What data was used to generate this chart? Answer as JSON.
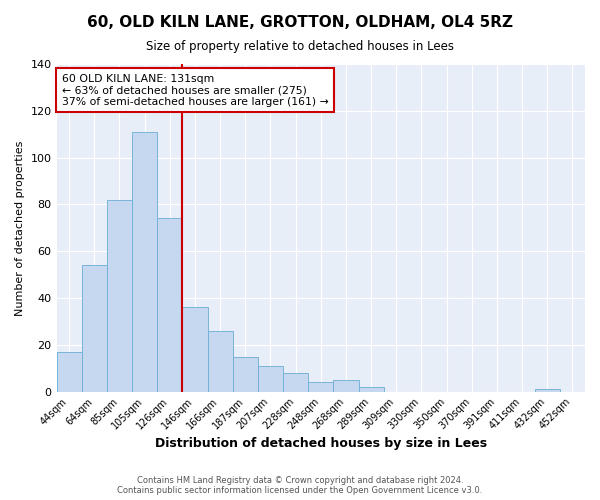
{
  "title": "60, OLD KILN LANE, GROTTON, OLDHAM, OL4 5RZ",
  "subtitle": "Size of property relative to detached houses in Lees",
  "xlabel": "Distribution of detached houses by size in Lees",
  "ylabel": "Number of detached properties",
  "footer_line1": "Contains HM Land Registry data © Crown copyright and database right 2024.",
  "footer_line2": "Contains public sector information licensed under the Open Government Licence v3.0.",
  "categories": [
    "44sqm",
    "64sqm",
    "85sqm",
    "105sqm",
    "126sqm",
    "146sqm",
    "166sqm",
    "187sqm",
    "207sqm",
    "228sqm",
    "248sqm",
    "268sqm",
    "289sqm",
    "309sqm",
    "330sqm",
    "350sqm",
    "370sqm",
    "391sqm",
    "411sqm",
    "432sqm",
    "452sqm"
  ],
  "values": [
    17,
    54,
    82,
    111,
    74,
    36,
    26,
    15,
    11,
    8,
    4,
    5,
    2,
    0,
    0,
    0,
    0,
    0,
    0,
    1,
    0
  ],
  "bar_color": "#c5d8f0",
  "bar_edge_color": "#6aaed6",
  "property_label": "60 OLD KILN LANE: 131sqm",
  "annotation_line1": "← 63% of detached houses are smaller (275)",
  "annotation_line2": "37% of semi-detached houses are larger (161) →",
  "vline_x_index": 4.5,
  "vline_color": "#cc0000",
  "box_edge_color": "#cc0000",
  "ylim": [
    0,
    140
  ],
  "plot_bg_color": "#e8eef8",
  "fig_bg_color": "#ffffff",
  "grid_color": "#ffffff"
}
